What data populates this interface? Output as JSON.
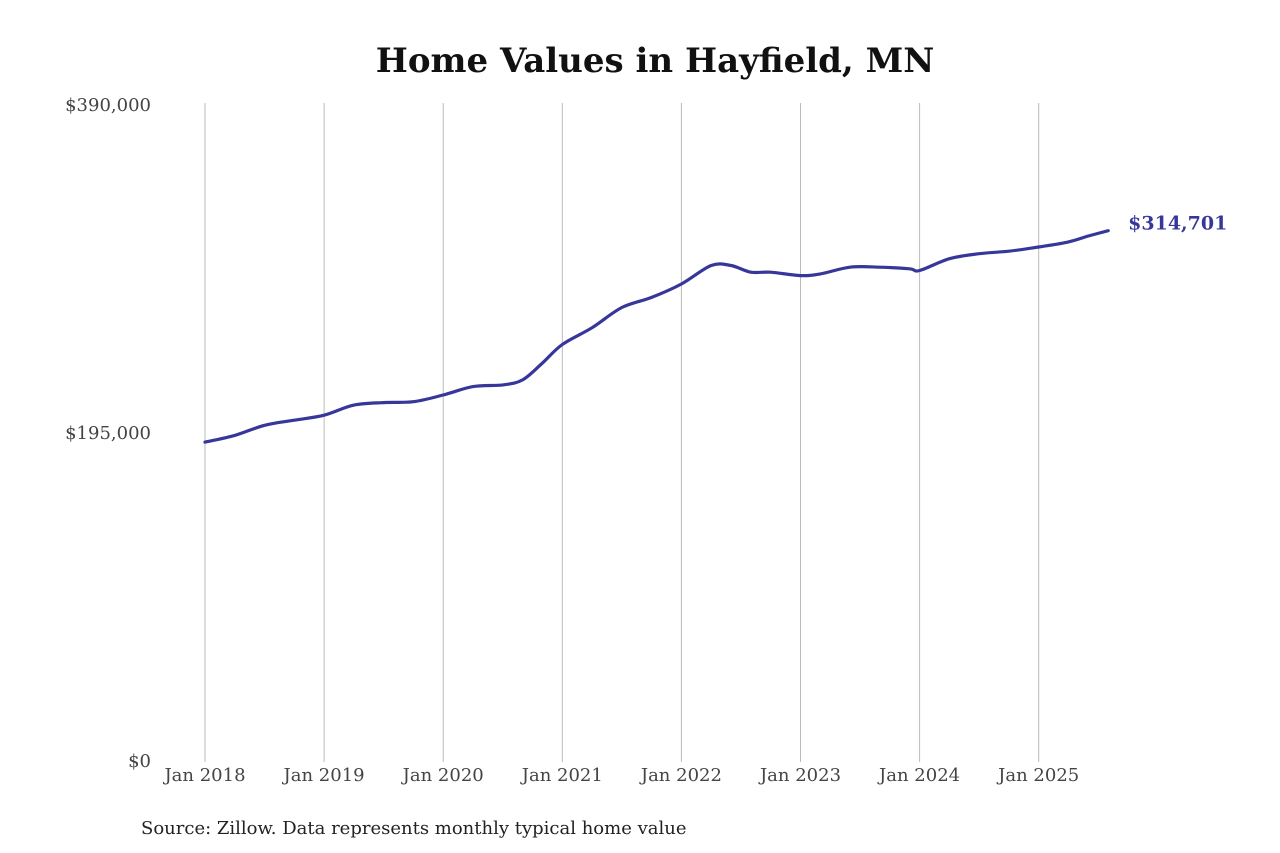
{
  "chart_data": {
    "type": "line",
    "title": "Home Values in Hayfield, MN",
    "xlabel": "",
    "ylabel": "",
    "x_ticks": [
      "Jan 2018",
      "Jan 2019",
      "Jan 2020",
      "Jan 2021",
      "Jan 2022",
      "Jan 2023",
      "Jan 2024",
      "Jan 2025"
    ],
    "y_ticks": [
      "$0",
      "$195,000",
      "$390,000"
    ],
    "y_tick_values": [
      0,
      195000,
      390000
    ],
    "ylim": [
      0,
      390000
    ],
    "xlim": [
      "2018-01",
      "2025-08"
    ],
    "grid": "vertical lines at January of each year",
    "series": [
      {
        "color": "#37379a",
        "x": [
          "2018-01",
          "2018-04",
          "2018-07",
          "2018-10",
          "2019-01",
          "2019-04",
          "2019-07",
          "2019-10",
          "2020-01",
          "2020-04",
          "2020-07",
          "2020-09",
          "2020-11",
          "2021-01",
          "2021-04",
          "2021-07",
          "2021-10",
          "2022-01",
          "2022-04",
          "2022-06",
          "2022-08",
          "2022-10",
          "2023-01",
          "2023-03",
          "2023-06",
          "2023-09",
          "2023-12",
          "2024-01",
          "2024-04",
          "2024-07",
          "2024-10",
          "2025-01",
          "2025-04",
          "2025-06",
          "2025-08"
        ],
        "values": [
          189000,
          193000,
          199000,
          202000,
          205000,
          211000,
          212500,
          213000,
          217000,
          222000,
          223000,
          226000,
          236000,
          247000,
          257000,
          269000,
          275000,
          283000,
          294000,
          294000,
          290000,
          290000,
          288000,
          289000,
          293000,
          293000,
          292000,
          291000,
          298000,
          301000,
          302500,
          305000,
          308000,
          311500,
          314701
        ]
      }
    ],
    "end_label": "$314,701",
    "source_note": "Source: Zillow. Data represents monthly typical home value"
  }
}
